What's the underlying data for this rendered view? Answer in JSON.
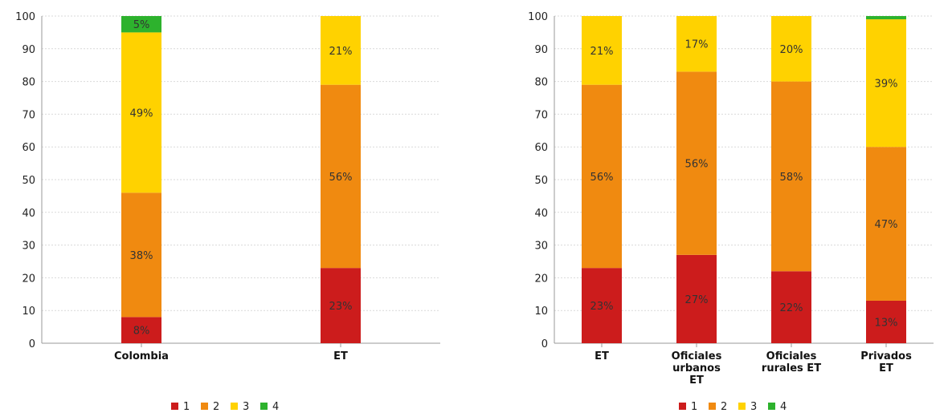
{
  "chart_data": [
    {
      "type": "bar",
      "stacked": true,
      "categories": [
        "Colombia",
        "ET"
      ],
      "series": [
        {
          "name": "1",
          "color": "#cc1c1c",
          "values": [
            8,
            23
          ],
          "labels": [
            "8%",
            "23%"
          ]
        },
        {
          "name": "2",
          "color": "#f08a10",
          "values": [
            38,
            56
          ],
          "labels": [
            "38%",
            "56%"
          ]
        },
        {
          "name": "3",
          "color": "#ffd200",
          "values": [
            49,
            21
          ],
          "labels": [
            "49%",
            "21%"
          ]
        },
        {
          "name": "4",
          "color": "#2db22d",
          "values": [
            5,
            0
          ],
          "labels": [
            "5%",
            ""
          ]
        }
      ],
      "ylim": [
        0,
        100
      ],
      "yticks": [
        0,
        10,
        20,
        30,
        40,
        50,
        60,
        70,
        80,
        90,
        100
      ],
      "grid": true,
      "legend": "bottom"
    },
    {
      "type": "bar",
      "stacked": true,
      "categories": [
        "ET",
        "Oficiales urbanos ET",
        "Oficiales rurales ET",
        "Privados ET"
      ],
      "series": [
        {
          "name": "1",
          "color": "#cc1c1c",
          "values": [
            23,
            27,
            22,
            13
          ],
          "labels": [
            "23%",
            "27%",
            "22%",
            "13%"
          ]
        },
        {
          "name": "2",
          "color": "#f08a10",
          "values": [
            56,
            56,
            58,
            47
          ],
          "labels": [
            "56%",
            "56%",
            "58%",
            "47%"
          ]
        },
        {
          "name": "3",
          "color": "#ffd200",
          "values": [
            21,
            17,
            20,
            39
          ],
          "labels": [
            "21%",
            "17%",
            "20%",
            "39%"
          ]
        },
        {
          "name": "4",
          "color": "#2db22d",
          "values": [
            0,
            0,
            0,
            1
          ],
          "labels": [
            "",
            "",
            "",
            ""
          ]
        }
      ],
      "ylim": [
        0,
        100
      ],
      "yticks": [
        0,
        10,
        20,
        30,
        40,
        50,
        60,
        70,
        80,
        90,
        100
      ],
      "grid": true,
      "legend": "bottom"
    }
  ]
}
